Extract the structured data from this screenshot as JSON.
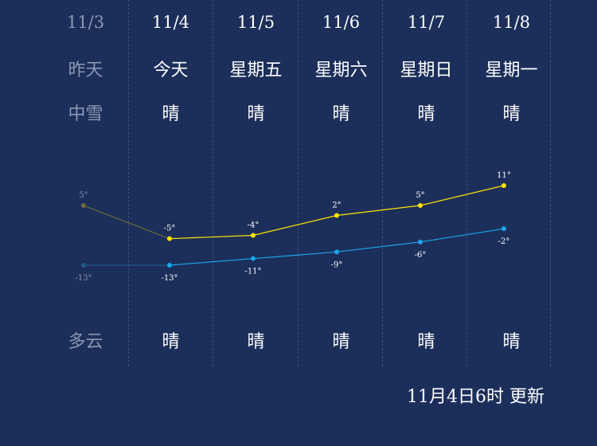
{
  "forecast": {
    "days": [
      {
        "date": "11/3",
        "day": "昨天",
        "weather_day": "中雪",
        "weather_night": "多云",
        "high": 5,
        "low": -13,
        "high_label": "5°",
        "low_label": "-13°",
        "past": true
      },
      {
        "date": "11/4",
        "day": "今天",
        "weather_day": "晴",
        "weather_night": "晴",
        "high": -5,
        "low": -13,
        "high_label": "-5°",
        "low_label": "-13°",
        "past": false
      },
      {
        "date": "11/5",
        "day": "星期五",
        "weather_day": "晴",
        "weather_night": "晴",
        "high": -4,
        "low": -11,
        "high_label": "-4°",
        "low_label": "-11°",
        "past": false
      },
      {
        "date": "11/6",
        "day": "星期六",
        "weather_day": "晴",
        "weather_night": "晴",
        "high": 2,
        "low": -9,
        "high_label": "2°",
        "low_label": "-9°",
        "past": false
      },
      {
        "date": "11/7",
        "day": "星期日",
        "weather_day": "晴",
        "weather_night": "晴",
        "high": 5,
        "low": -6,
        "high_label": "5°",
        "low_label": "-6°",
        "past": false
      },
      {
        "date": "11/8",
        "day": "星期一",
        "weather_day": "晴",
        "weather_night": "晴",
        "high": 11,
        "low": -2,
        "high_label": "11°",
        "low_label": "-2°",
        "past": false
      }
    ]
  },
  "colors": {
    "background": "#1c2f5a",
    "high_line": "#ffe500",
    "low_line": "#1aa6e8",
    "past_high": "#6b6a3e",
    "past_low": "#1e5a86",
    "past_text": "#8a97b3"
  },
  "footer": {
    "updated": "11月4日6时 更新"
  }
}
